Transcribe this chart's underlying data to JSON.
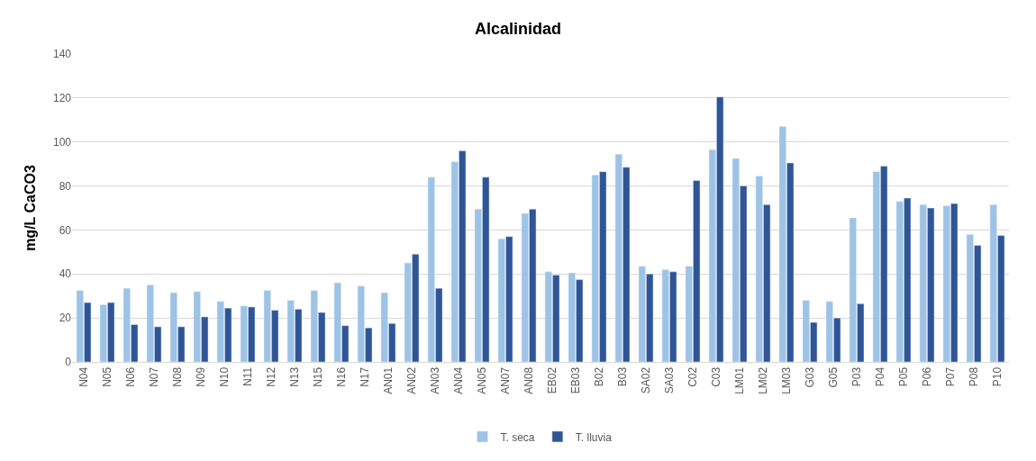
{
  "chart_data": {
    "type": "bar",
    "title": "Alcalinidad",
    "ylabel": "mg/L CaCO3",
    "categories": [
      "N04",
      "N05",
      "N06",
      "N07",
      "N08",
      "N09",
      "N10",
      "N11",
      "N12",
      "N13",
      "N15",
      "N16",
      "N17",
      "AN01",
      "AN02",
      "AN03",
      "AN04",
      "AN05",
      "AN07",
      "AN08",
      "EB02",
      "EB03",
      "B02",
      "B03",
      "SA02",
      "SA03",
      "C02",
      "C03",
      "LM01",
      "LM02",
      "LM03",
      "G03",
      "G05",
      "P03",
      "P04",
      "P05",
      "P06",
      "P07",
      "P08",
      "P10"
    ],
    "series": [
      {
        "name": "T. seca",
        "color": "#9dc3e6",
        "values": [
          32.5,
          26,
          33.5,
          35,
          31.5,
          32,
          27.5,
          25.5,
          32.5,
          28,
          32.5,
          36,
          34.5,
          31.5,
          45,
          84,
          91,
          69.5,
          56,
          67.5,
          41,
          40.5,
          85,
          94.5,
          43.5,
          42,
          43.5,
          96.5,
          92.5,
          84.5,
          107,
          28,
          27.5,
          65.5,
          86.5,
          73,
          71.5,
          71,
          58,
          71.5
        ]
      },
      {
        "name": "T. lluvia",
        "color": "#2f5597",
        "values": [
          27,
          27,
          17,
          16,
          16,
          20.5,
          24.5,
          25,
          23.5,
          24,
          22.5,
          16.5,
          15.5,
          17.5,
          49,
          33.5,
          96,
          84,
          57,
          69.5,
          39.5,
          37.5,
          86.5,
          88.5,
          40,
          41,
          82.5,
          120.5,
          80,
          71.5,
          90.5,
          18,
          20,
          26.5,
          89,
          74.5,
          70,
          72,
          53,
          57.5
        ]
      }
    ],
    "ylim": [
      0,
      140
    ],
    "yticks": [
      0,
      20,
      40,
      60,
      80,
      100,
      120,
      140
    ],
    "grid": "y",
    "legend": "bottom"
  }
}
